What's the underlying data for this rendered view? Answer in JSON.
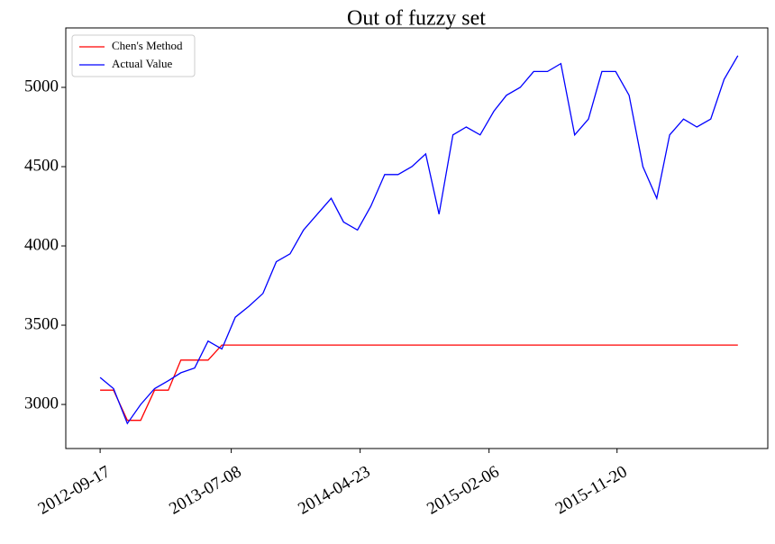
{
  "chart_data": {
    "type": "line",
    "title": "Out of fuzzy set",
    "x": [
      "2012-09-17",
      "2012-10-17",
      "2012-11-17",
      "2012-12-17",
      "2013-01-17",
      "2013-02-17",
      "2013-03-17",
      "2013-04-17",
      "2013-05-17",
      "2013-06-17",
      "2013-07-17",
      "2013-08-17",
      "2013-09-17",
      "2013-10-17",
      "2013-11-17",
      "2013-12-17",
      "2014-01-17",
      "2014-02-17",
      "2014-03-17",
      "2014-04-17",
      "2014-05-17",
      "2014-06-17",
      "2014-07-17",
      "2014-08-17",
      "2014-09-17",
      "2014-10-17",
      "2014-11-17",
      "2014-12-17",
      "2015-01-17",
      "2015-02-17",
      "2015-03-17",
      "2015-04-17",
      "2015-05-17",
      "2015-06-17",
      "2015-07-17",
      "2015-08-17",
      "2015-09-17",
      "2015-10-17",
      "2015-11-17",
      "2015-12-17",
      "2016-01-17",
      "2016-02-17",
      "2016-03-17",
      "2016-04-17",
      "2016-05-17",
      "2016-06-17",
      "2016-07-17",
      "2016-08-17"
    ],
    "series": [
      {
        "name": "Chen's Method",
        "color": "#ff0000",
        "values": [
          3090,
          3090,
          2900,
          2900,
          3090,
          3090,
          3280,
          3280,
          3280,
          3375,
          3375,
          3375,
          3375,
          3375,
          3375,
          3375,
          3375,
          3375,
          3375,
          3375,
          3375,
          3375,
          3375,
          3375,
          3375,
          3375,
          3375,
          3375,
          3375,
          3375,
          3375,
          3375,
          3375,
          3375,
          3375,
          3375,
          3375,
          3375,
          3375,
          3375,
          3375,
          3375,
          3375,
          3375,
          3375,
          3375,
          3375,
          3375
        ]
      },
      {
        "name": "Actual Value",
        "color": "#0000ff",
        "values": [
          3170,
          3100,
          2880,
          3000,
          3100,
          3150,
          3200,
          3230,
          3400,
          3350,
          3550,
          3620,
          3700,
          3900,
          3950,
          4100,
          4200,
          4300,
          4150,
          4100,
          4250,
          4450,
          4450,
          4500,
          4580,
          4200,
          4700,
          4750,
          4700,
          4850,
          4950,
          5000,
          5100,
          5100,
          5150,
          4700,
          4800,
          5100,
          5100,
          4950,
          4500,
          4300,
          4700,
          4800,
          4750,
          4800,
          5050,
          5200
        ]
      }
    ],
    "xlim": [
      "2012-07-02",
      "2016-10-23"
    ],
    "xticks": [
      "2012-09-17",
      "2013-07-08",
      "2014-04-23",
      "2015-02-06",
      "2015-11-20"
    ],
    "ylim": [
      2722,
      5375
    ],
    "yticks": [
      3000,
      3500,
      4000,
      4500,
      5000
    ],
    "legend": "upper-left"
  }
}
